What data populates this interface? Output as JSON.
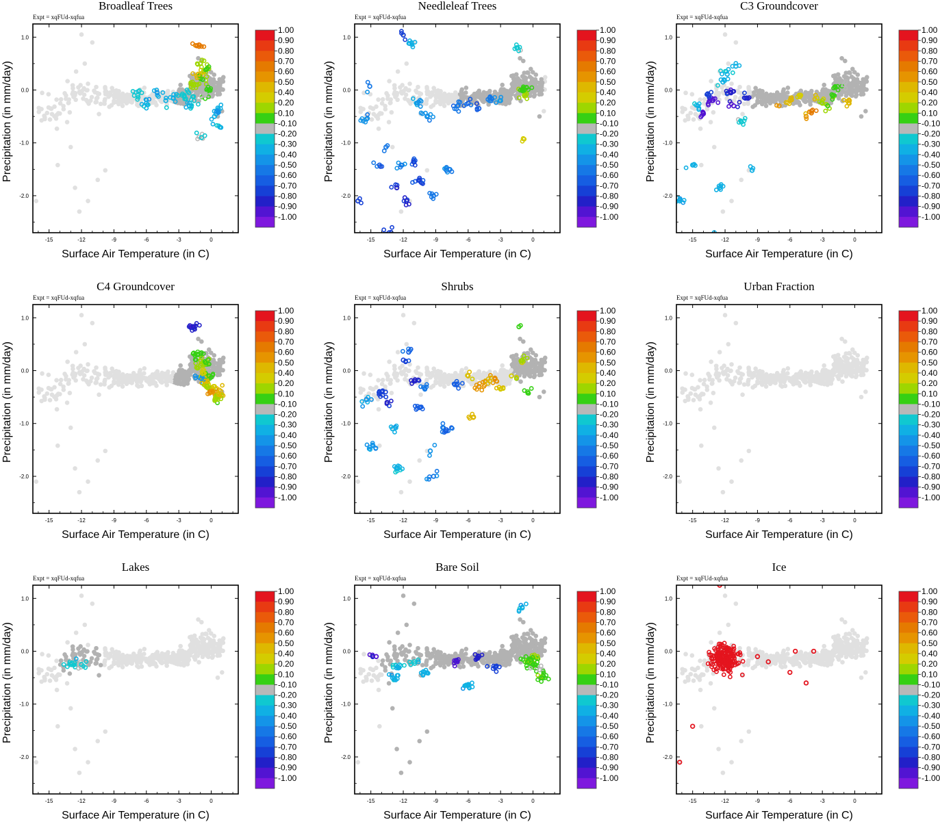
{
  "figure": {
    "expt_label": "Expt = xqFUd-xqfua",
    "xlabel": "Surface Air Temperature (in C)",
    "ylabel": "Precipitation (in mm/day)",
    "xticks": [
      "-15",
      "-12",
      "-9",
      "-6",
      "-3",
      "0"
    ],
    "yticks": [
      "1.0",
      "0.0",
      "-1.0",
      "-2.0"
    ],
    "colorbar": {
      "labels": [
        "1.00",
        "0.90",
        "0.80",
        "0.70",
        "0.60",
        "0.50",
        "0.40",
        "0.20",
        "0.10",
        "-0.10",
        "-0.20",
        "-0.30",
        "-0.40",
        "-0.50",
        "-0.60",
        "-0.70",
        "-0.80",
        "-0.90",
        "-1.00"
      ],
      "colors": [
        "#e4141e",
        "#e83a12",
        "#ea5a0a",
        "#e57a00",
        "#e69400",
        "#deb800",
        "#d4cc00",
        "#9ed600",
        "#36d014",
        "#b8b8b8",
        "#10c8d0",
        "#10b0e4",
        "#1494e8",
        "#1678e6",
        "#165ee2",
        "#1640d6",
        "#2220c8",
        "#5214d2",
        "#7e18de"
      ]
    }
  },
  "chart_data": [
    {
      "type": "scatter",
      "title": "Broadleaf Trees",
      "xlabel": "Surface Air Temperature (in C)",
      "ylabel": "Precipitation (in mm/day)",
      "xlim": [
        -16.5,
        2.5
      ],
      "ylim": [
        -2.7,
        1.25
      ],
      "colorbar_range": [
        -1.0,
        1.0
      ],
      "active": true,
      "highlight": "trop",
      "x": [
        -6.8,
        -6.0,
        -5.0,
        -4.2,
        -3.5,
        -2.5,
        -2.0,
        -1.6,
        -1.4,
        -1.2,
        -1.0,
        -0.8,
        -0.6,
        -0.4,
        -0.2,
        0.3,
        0.6,
        0.8,
        -1.1,
        -0.9
      ],
      "y": [
        -0.1,
        -0.25,
        -0.05,
        -0.2,
        -0.15,
        -0.1,
        -0.3,
        -0.2,
        0.1,
        0.3,
        0.5,
        0.2,
        -0.1,
        0.4,
        0.0,
        -0.5,
        -0.4,
        -0.7,
        0.85,
        -0.9
      ],
      "c": [
        -0.2,
        -0.3,
        -0.35,
        -0.25,
        -0.3,
        -0.2,
        -0.25,
        -0.15,
        0.3,
        0.5,
        0.35,
        0.2,
        0.1,
        0.25,
        0.15,
        -0.3,
        -0.35,
        -0.25,
        0.7,
        -0.15
      ]
    },
    {
      "type": "scatter",
      "title": "Needleleaf Trees",
      "xlabel": "Surface Air Temperature (in C)",
      "ylabel": "Precipitation (in mm/day)",
      "xlim": [
        -16.5,
        2.5
      ],
      "ylim": [
        -2.7,
        1.25
      ],
      "colorbar_range": [
        -1.0,
        1.0
      ],
      "active": true,
      "highlight": "boreal",
      "x": [
        -16.2,
        -15.4,
        -15.1,
        -14.2,
        -13.6,
        -13.3,
        -12.6,
        -12.2,
        -12.0,
        -11.7,
        -11.4,
        -11.0,
        -10.7,
        -10.5,
        -9.8,
        -9.2,
        -8.0,
        -7.0,
        -6.0,
        -5.0,
        -4.0,
        -3.0,
        -1.5,
        -1.0,
        -0.8,
        -0.6,
        -0.9
      ],
      "y": [
        -2.1,
        -0.55,
        0.07,
        -1.42,
        -1.08,
        -2.7,
        -1.85,
        -1.42,
        1.04,
        -2.1,
        0.88,
        -1.36,
        -0.25,
        -1.7,
        -0.5,
        -2.0,
        -1.52,
        -0.3,
        -0.25,
        -0.35,
        -0.15,
        -0.2,
        0.8,
        0.0,
        -0.1,
        0.05,
        -0.92
      ],
      "c": [
        -0.7,
        -0.4,
        -0.45,
        -0.6,
        -0.5,
        -0.7,
        -0.75,
        -0.45,
        -0.7,
        -0.75,
        -0.3,
        -0.7,
        -0.35,
        -0.65,
        -0.4,
        -0.5,
        -0.45,
        -0.5,
        -0.55,
        -0.6,
        -0.5,
        -0.4,
        -0.2,
        0.2,
        0.3,
        0.15,
        0.4
      ]
    },
    {
      "type": "scatter",
      "title": "C3 Groundcover",
      "xlabel": "Surface Air Temperature (in C)",
      "ylabel": "Precipitation (in mm/day)",
      "xlim": [
        -16.5,
        2.5
      ],
      "ylim": [
        -2.7,
        1.25
      ],
      "colorbar_range": [
        -1.0,
        1.0
      ],
      "active": true,
      "highlight": "c3",
      "x": [
        -16.2,
        -15.0,
        -14.5,
        -14.0,
        -13.5,
        -13.2,
        -13.0,
        -12.5,
        -12.2,
        -11.8,
        -11.5,
        -11.2,
        -11.0,
        -10.5,
        -10.0,
        -9.5,
        -7.0,
        -6.0,
        -5.0,
        -4.0,
        -3.0,
        -2.0,
        -1.0,
        -0.5,
        -4.5,
        -3.5,
        -2.5,
        -1.8
      ],
      "y": [
        -2.1,
        -1.42,
        -0.3,
        -0.45,
        -0.1,
        -0.2,
        -2.7,
        -1.85,
        0.15,
        0.3,
        -0.05,
        -0.3,
        0.45,
        -0.6,
        -0.15,
        -1.52,
        -0.3,
        -0.2,
        -0.1,
        -0.4,
        -0.25,
        -0.1,
        0.1,
        -0.2,
        -0.5,
        -0.15,
        -0.3,
        0.05
      ],
      "c": [
        -0.3,
        -0.3,
        -0.25,
        -0.85,
        -0.7,
        -0.9,
        -0.25,
        -0.3,
        -0.3,
        -0.25,
        -0.8,
        -0.85,
        -0.3,
        -0.2,
        -0.75,
        -0.3,
        0.6,
        0.5,
        0.4,
        0.7,
        0.3,
        0.2,
        0.1,
        0.5,
        0.6,
        0.45,
        0.25,
        0.15
      ]
    },
    {
      "type": "scatter",
      "title": "C4 Groundcover",
      "xlabel": "Surface Air Temperature (in C)",
      "ylabel": "Precipitation (in mm/day)",
      "xlim": [
        -16.5,
        2.5
      ],
      "ylim": [
        -2.7,
        1.25
      ],
      "colorbar_range": [
        -1.0,
        1.0
      ],
      "active": true,
      "highlight": "trop",
      "x": [
        -1.6,
        -1.3,
        -1.0,
        -0.8,
        -0.6,
        -0.4,
        -0.2,
        0.0,
        0.3,
        0.5,
        0.7,
        -0.9,
        -0.5
      ],
      "y": [
        0.83,
        0.3,
        0.1,
        -0.05,
        -0.2,
        -0.3,
        -0.1,
        -0.4,
        -0.3,
        -0.5,
        -0.45,
        -0.15,
        0.15
      ],
      "c": [
        -0.8,
        0.2,
        0.3,
        0.4,
        0.5,
        0.35,
        0.2,
        0.6,
        0.45,
        0.3,
        0.5,
        -0.4,
        0.25
      ]
    },
    {
      "type": "scatter",
      "title": "Shrubs",
      "xlabel": "Surface Air Temperature (in C)",
      "ylabel": "Precipitation (in mm/day)",
      "xlim": [
        -16.5,
        2.5
      ],
      "ylim": [
        -2.7,
        1.25
      ],
      "colorbar_range": [
        -1.0,
        1.0
      ],
      "active": true,
      "highlight": "shrub",
      "x": [
        -15.4,
        -14.8,
        -14.0,
        -13.5,
        -13.0,
        -12.5,
        -12.0,
        -11.5,
        -11.0,
        -10.5,
        -10.0,
        -9.5,
        -8.0,
        -7.0,
        -6.0,
        -5.0,
        -4.0,
        -3.0,
        -2.0,
        -1.0,
        -0.5,
        -1.3,
        -5.5,
        -3.5,
        -9.2
      ],
      "y": [
        -0.55,
        -1.42,
        -0.4,
        -0.6,
        -1.1,
        -1.85,
        0.2,
        0.35,
        -0.2,
        -0.7,
        -0.35,
        -1.52,
        -1.12,
        -0.25,
        -0.1,
        -0.3,
        -0.2,
        -0.35,
        -0.1,
        0.2,
        -0.4,
        0.83,
        -0.88,
        -0.15,
        -2.0
      ],
      "c": [
        -0.35,
        -0.4,
        -0.7,
        -0.75,
        -0.3,
        -0.25,
        -0.65,
        -0.55,
        -0.8,
        -0.6,
        -0.5,
        -0.4,
        -0.55,
        -0.6,
        0.5,
        0.6,
        0.55,
        0.45,
        0.4,
        0.3,
        0.2,
        0.15,
        0.5,
        0.65,
        -0.45
      ]
    },
    {
      "type": "scatter",
      "title": "Urban Fraction",
      "xlabel": "Surface Air Temperature (in C)",
      "ylabel": "Precipitation (in mm/day)",
      "xlim": [
        -16.5,
        2.5
      ],
      "ylim": [
        -2.7,
        1.25
      ],
      "colorbar_range": [
        -1.0,
        1.0
      ],
      "active": false,
      "highlight": "none",
      "x": [],
      "y": [],
      "c": []
    },
    {
      "type": "scatter",
      "title": "Lakes",
      "xlabel": "Surface Air Temperature (in C)",
      "ylabel": "Precipitation (in mm/day)",
      "xlim": [
        -16.5,
        2.5
      ],
      "ylim": [
        -2.7,
        1.25
      ],
      "colorbar_range": [
        -1.0,
        1.0
      ],
      "active": true,
      "highlight": "lakes",
      "x": [
        -13.0,
        -12.0
      ],
      "y": [
        -0.25,
        -0.25
      ],
      "c": [
        -0.2,
        -0.15
      ]
    },
    {
      "type": "scatter",
      "title": "Bare Soil",
      "xlabel": "Surface Air Temperature (in C)",
      "ylabel": "Precipitation (in mm/day)",
      "xlim": [
        -16.5,
        2.5
      ],
      "ylim": [
        -2.7,
        1.25
      ],
      "colorbar_range": [
        -1.0,
        1.0
      ],
      "active": true,
      "highlight": "bare",
      "x": [
        -14.5,
        -13.0,
        -12.5,
        -11.0,
        -10.0,
        -7.0,
        -6.0,
        -5.0,
        -3.5,
        -1.0,
        -0.5,
        0.0,
        0.4,
        0.8,
        0.6,
        -0.2
      ],
      "y": [
        -0.1,
        -0.5,
        -0.3,
        -0.2,
        -0.4,
        -0.2,
        -0.65,
        -0.1,
        -0.3,
        0.82,
        -0.2,
        -0.25,
        -0.1,
        -0.5,
        -0.35,
        -0.15
      ],
      "c": [
        -0.85,
        -0.3,
        -0.25,
        -0.2,
        -0.3,
        -0.85,
        -0.3,
        -0.8,
        -0.7,
        -0.3,
        0.2,
        0.15,
        0.3,
        0.2,
        0.1,
        0.25
      ]
    },
    {
      "type": "scatter",
      "title": "Ice",
      "xlabel": "Surface Air Temperature (in C)",
      "ylabel": "Precipitation (in mm/day)",
      "xlim": [
        -16.5,
        2.5
      ],
      "ylim": [
        -2.7,
        1.25
      ],
      "colorbar_range": [
        -1.0,
        1.0
      ],
      "active": true,
      "highlight": "ice",
      "x": [
        -16.2,
        -15.0,
        -12.5,
        -9.0,
        -8.0,
        -6.0,
        -5.5,
        -4.5,
        -3.8
      ],
      "y": [
        -2.1,
        -1.42,
        1.25,
        -0.1,
        -0.2,
        -0.4,
        0.0,
        -0.6,
        0.0
      ],
      "c": [
        1.0,
        1.0,
        1.0,
        1.0,
        1.0,
        1.0,
        1.0,
        1.0,
        1.0
      ]
    }
  ]
}
